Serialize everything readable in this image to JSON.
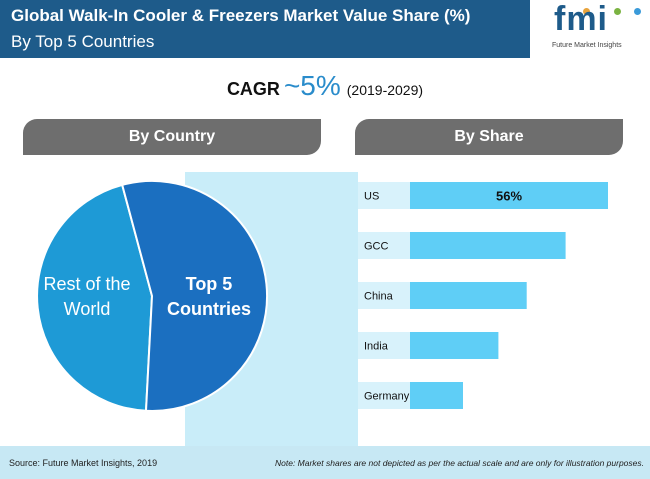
{
  "header": {
    "title_line_1": "Global Walk-In Cooler & Freezers Market Value Share (%)",
    "title_line_2": "By Top 5 Countries",
    "background_color": "#1e5b8a"
  },
  "logo": {
    "text": "fmi",
    "subtitle": "Future Market Insights"
  },
  "cagr": {
    "label": "CAGR",
    "value": "~5%",
    "period": "(2019-2029)"
  },
  "tabs": {
    "by_country": "By Country",
    "by_share": "By Share"
  },
  "chart_data": [
    {
      "type": "pie",
      "categories": [
        "Rest of the World",
        "Top 5 Countries"
      ],
      "labels": [
        [
          "Rest of the",
          "World"
        ],
        [
          "Top 5",
          "Countries"
        ]
      ],
      "values": [
        45,
        55
      ],
      "colors": [
        "#1e9ad6",
        "#1b6fc0"
      ],
      "legend": "none"
    },
    {
      "type": "bar",
      "orientation": "horizontal",
      "categories": [
        "US",
        "GCC",
        "China",
        "India",
        "Germany"
      ],
      "values": [
        56,
        44,
        33,
        25,
        15
      ],
      "data_labels": [
        "56%",
        "",
        "",
        "",
        ""
      ],
      "bar_color": "#5fcef6",
      "label_background": "#d8f2fb",
      "xlim": [
        0,
        56
      ],
      "grid": false,
      "legend": "none"
    }
  ],
  "footer": {
    "source": "Source: Future Market Insights, 2019",
    "note": "Note: Market shares are not depicted as per the actual scale and are only for illustration purposes."
  }
}
